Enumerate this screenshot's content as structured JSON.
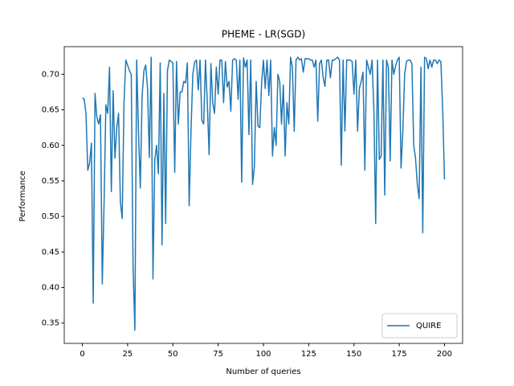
{
  "chart_data": {
    "type": "line",
    "title": "PHEME - LR(SGD)",
    "x_label": "Number of queries",
    "y_label": "Performance",
    "x": [
      0,
      1,
      2,
      3,
      4,
      5,
      6,
      7,
      8,
      9,
      10,
      11,
      12,
      13,
      14,
      15,
      16,
      17,
      18,
      19,
      20,
      21,
      22,
      23,
      24,
      25,
      26,
      27,
      28,
      29,
      30,
      31,
      32,
      33,
      34,
      35,
      36,
      37,
      38,
      39,
      40,
      41,
      42,
      43,
      44,
      45,
      46,
      47,
      48,
      49,
      50,
      51,
      52,
      53,
      54,
      55,
      56,
      57,
      58,
      59,
      60,
      61,
      62,
      63,
      64,
      65,
      66,
      67,
      68,
      69,
      70,
      71,
      72,
      73,
      74,
      75,
      76,
      77,
      78,
      79,
      80,
      81,
      82,
      83,
      84,
      85,
      86,
      87,
      88,
      89,
      90,
      91,
      92,
      93,
      94,
      95,
      96,
      97,
      98,
      99,
      100,
      101,
      102,
      103,
      104,
      105,
      106,
      107,
      108,
      109,
      110,
      111,
      112,
      113,
      114,
      115,
      116,
      117,
      118,
      119,
      120,
      121,
      122,
      123,
      124,
      125,
      126,
      127,
      128,
      129,
      130,
      131,
      132,
      133,
      134,
      135,
      136,
      137,
      138,
      139,
      140,
      141,
      142,
      143,
      144,
      145,
      146,
      147,
      148,
      149,
      150,
      151,
      152,
      153,
      154,
      155,
      156,
      157,
      158,
      159,
      160,
      161,
      162,
      163,
      164,
      165,
      166,
      167,
      168,
      169,
      170,
      171,
      172,
      173,
      174,
      175,
      176,
      177,
      178,
      179,
      180,
      181,
      182,
      183,
      184,
      185,
      186,
      187,
      188,
      189,
      190,
      191,
      192,
      193,
      194,
      195,
      196,
      197,
      198,
      199,
      200
    ],
    "series": [
      {
        "name": "QUIRE",
        "color": "#1f77b4",
        "values": [
          0.667,
          0.665,
          0.645,
          0.565,
          0.575,
          0.603,
          0.378,
          0.673,
          0.64,
          0.63,
          0.643,
          0.405,
          0.52,
          0.657,
          0.645,
          0.71,
          0.535,
          0.677,
          0.582,
          0.625,
          0.645,
          0.52,
          0.497,
          0.66,
          0.72,
          0.713,
          0.705,
          0.7,
          0.43,
          0.34,
          0.72,
          0.62,
          0.54,
          0.67,
          0.705,
          0.713,
          0.68,
          0.583,
          0.724,
          0.412,
          0.58,
          0.6,
          0.56,
          0.716,
          0.46,
          0.673,
          0.49,
          0.705,
          0.72,
          0.718,
          0.716,
          0.562,
          0.718,
          0.63,
          0.675,
          0.675,
          0.69,
          0.688,
          0.716,
          0.515,
          0.62,
          0.7,
          0.717,
          0.72,
          0.678,
          0.72,
          0.635,
          0.63,
          0.72,
          0.66,
          0.587,
          0.715,
          0.66,
          0.645,
          0.71,
          0.672,
          0.72,
          0.72,
          0.66,
          0.718,
          0.682,
          0.69,
          0.648,
          0.72,
          0.722,
          0.72,
          0.665,
          0.72,
          0.548,
          0.723,
          0.71,
          0.72,
          0.615,
          0.72,
          0.545,
          0.57,
          0.69,
          0.627,
          0.625,
          0.688,
          0.72,
          0.68,
          0.72,
          0.67,
          0.72,
          0.585,
          0.625,
          0.6,
          0.7,
          0.69,
          0.63,
          0.685,
          0.585,
          0.66,
          0.63,
          0.724,
          0.71,
          0.62,
          0.72,
          0.724,
          0.72,
          0.722,
          0.703,
          0.722,
          0.722,
          0.722,
          0.72,
          0.72,
          0.71,
          0.72,
          0.634,
          0.715,
          0.72,
          0.695,
          0.683,
          0.72,
          0.72,
          0.695,
          0.72,
          0.72,
          0.722,
          0.724,
          0.72,
          0.572,
          0.72,
          0.62,
          0.72,
          0.72,
          0.72,
          0.718,
          0.672,
          0.72,
          0.62,
          0.68,
          0.69,
          0.703,
          0.565,
          0.72,
          0.71,
          0.7,
          0.72,
          0.65,
          0.49,
          0.72,
          0.58,
          0.585,
          0.72,
          0.53,
          0.72,
          0.71,
          0.578,
          0.72,
          0.7,
          0.712,
          0.72,
          0.724,
          0.568,
          0.62,
          0.7,
          0.718,
          0.72,
          0.72,
          0.715,
          0.6,
          0.582,
          0.545,
          0.525,
          0.71,
          0.477,
          0.724,
          0.722,
          0.708,
          0.72,
          0.71,
          0.72,
          0.72,
          0.715,
          0.72,
          0.718,
          0.65,
          0.552
        ]
      }
    ],
    "xlim": [
      -10,
      210
    ],
    "xticks": [
      0,
      25,
      50,
      75,
      100,
      125,
      150,
      175,
      200
    ],
    "ylim": [
      0.3214,
      0.7389
    ],
    "yticks": [
      0.35,
      {
        "value": 0.4,
        "label": "0.40"
      },
      0.45,
      {
        "value": 0.5,
        "label": "0.50"
      },
      0.55,
      {
        "value": 0.6,
        "label": "0.60"
      },
      0.65,
      {
        "value": 0.7,
        "label": "0.70"
      }
    ],
    "legend": "lower right"
  }
}
